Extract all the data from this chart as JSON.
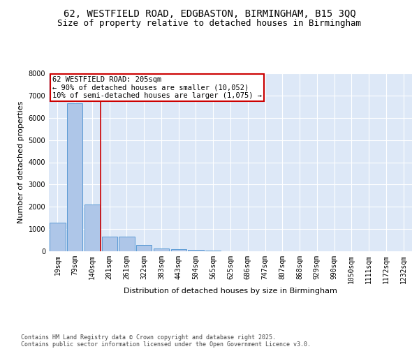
{
  "title_line1": "62, WESTFIELD ROAD, EDGBASTON, BIRMINGHAM, B15 3QQ",
  "title_line2": "Size of property relative to detached houses in Birmingham",
  "xlabel": "Distribution of detached houses by size in Birmingham",
  "ylabel": "Number of detached properties",
  "categories": [
    "19sqm",
    "79sqm",
    "140sqm",
    "201sqm",
    "261sqm",
    "322sqm",
    "383sqm",
    "443sqm",
    "504sqm",
    "565sqm",
    "625sqm",
    "686sqm",
    "747sqm",
    "807sqm",
    "868sqm",
    "929sqm",
    "990sqm",
    "1050sqm",
    "1111sqm",
    "1172sqm",
    "1232sqm"
  ],
  "values": [
    1300,
    6650,
    2100,
    650,
    650,
    280,
    130,
    90,
    50,
    30,
    0,
    0,
    0,
    0,
    0,
    0,
    0,
    0,
    0,
    0,
    0
  ],
  "bar_color": "#aec6e8",
  "bar_edge_color": "#5b9bd5",
  "bg_color": "#dde8f7",
  "grid_color": "#ffffff",
  "red_line_x": 2.5,
  "annotation_text_line1": "62 WESTFIELD ROAD: 205sqm",
  "annotation_text_line2": "← 90% of detached houses are smaller (10,052)",
  "annotation_text_line3": "10% of semi-detached houses are larger (1,075) →",
  "annotation_box_color": "#ffffff",
  "annotation_box_edge_color": "#cc0000",
  "red_line_color": "#cc0000",
  "ylim": [
    0,
    8000
  ],
  "yticks": [
    0,
    1000,
    2000,
    3000,
    4000,
    5000,
    6000,
    7000,
    8000
  ],
  "footer_line1": "Contains HM Land Registry data © Crown copyright and database right 2025.",
  "footer_line2": "Contains public sector information licensed under the Open Government Licence v3.0.",
  "title_fontsize": 10,
  "subtitle_fontsize": 9,
  "ylabel_fontsize": 8,
  "xlabel_fontsize": 8,
  "tick_fontsize": 7,
  "annotation_fontsize": 7.5,
  "footer_fontsize": 6
}
